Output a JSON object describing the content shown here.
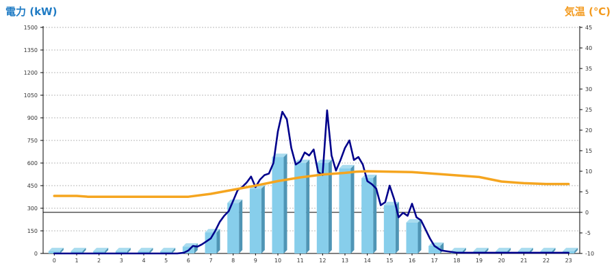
{
  "chart_data": {
    "type": "bar",
    "left_axis_title": "電力 (kW)",
    "right_axis_title": "気温 (℃)",
    "xlabel": "",
    "categories": [
      "0",
      "1",
      "2",
      "3",
      "4",
      "5",
      "6",
      "7",
      "8",
      "9",
      "10",
      "11",
      "12",
      "13",
      "14",
      "15",
      "16",
      "17",
      "18",
      "19",
      "20",
      "21",
      "22",
      "23"
    ],
    "y_left_ticks": [
      "0",
      "150",
      "300",
      "450",
      "600",
      "750",
      "900",
      "1050",
      "1200",
      "1350",
      "1500"
    ],
    "y_right_ticks": [
      "-10",
      "-5",
      "0",
      "5",
      "10",
      "15",
      "20",
      "25",
      "30",
      "35",
      "40",
      "45"
    ],
    "ylim_left": [
      0,
      1500
    ],
    "ylim_right": [
      -10,
      45
    ],
    "grid": true,
    "legend": "none",
    "series": [
      {
        "type": "bar",
        "axis": "left",
        "color": "#87ceeb",
        "values": [
          15,
          15,
          15,
          15,
          15,
          15,
          45,
          140,
          335,
          430,
          640,
          600,
          600,
          565,
          500,
          320,
          205,
          50,
          15,
          15,
          15,
          15,
          15,
          15
        ]
      },
      {
        "type": "line",
        "axis": "left",
        "color": "#00008b",
        "x": [
          0,
          5,
          5.5,
          5.8,
          6,
          6.2,
          6.4,
          6.6,
          6.8,
          7,
          7.2,
          7.4,
          7.6,
          7.8,
          8,
          8.2,
          8.4,
          8.6,
          8.8,
          9,
          9.2,
          9.4,
          9.6,
          9.8,
          10,
          10.2,
          10.4,
          10.6,
          10.8,
          11,
          11.2,
          11.4,
          11.6,
          11.8,
          12,
          12.2,
          12.4,
          12.6,
          12.8,
          13,
          13.2,
          13.4,
          13.6,
          13.8,
          14,
          14.2,
          14.4,
          14.6,
          14.8,
          15,
          15.2,
          15.4,
          15.6,
          15.8,
          16,
          16.2,
          16.4,
          16.6,
          16.8,
          17,
          17.3,
          18,
          23
        ],
        "y": [
          0,
          0,
          0,
          5,
          20,
          50,
          45,
          60,
          80,
          100,
          150,
          210,
          250,
          280,
          350,
          420,
          440,
          470,
          510,
          440,
          490,
          520,
          530,
          600,
          810,
          940,
          890,
          700,
          590,
          610,
          670,
          650,
          690,
          540,
          520,
          950,
          650,
          550,
          620,
          700,
          750,
          620,
          640,
          590,
          480,
          460,
          430,
          320,
          340,
          450,
          360,
          240,
          270,
          250,
          330,
          240,
          220,
          160,
          100,
          50,
          20,
          5,
          5
        ]
      },
      {
        "type": "line",
        "axis": "right",
        "color": "#f5a51f",
        "x": [
          0,
          1,
          1.5,
          6,
          7,
          8,
          9,
          10,
          11,
          12,
          13,
          13.5,
          14,
          15,
          16,
          17,
          18,
          19,
          20,
          21,
          22,
          23
        ],
        "y": [
          4,
          4,
          3.8,
          3.8,
          4.5,
          5.5,
          6.5,
          7.6,
          8.5,
          9.2,
          9.6,
          9.9,
          10,
          9.9,
          9.8,
          9.4,
          9.0,
          8.6,
          7.5,
          7.1,
          6.9,
          6.9
        ]
      }
    ]
  }
}
